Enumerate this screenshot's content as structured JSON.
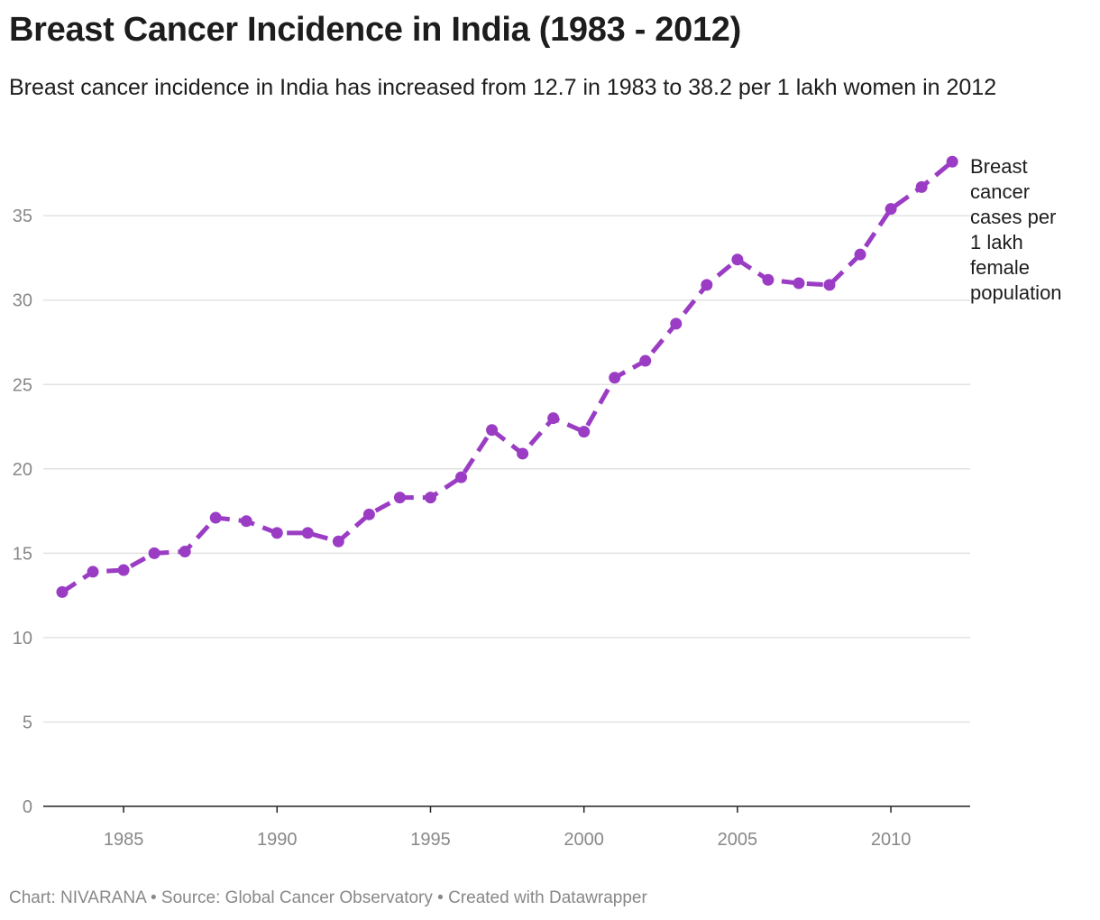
{
  "title": "Breast Cancer Incidence in India (1983 - 2012)",
  "subtitle": "Breast cancer incidence in India has increased from 12.7 in 1983 to 38.2 per 1 lakh women in 2012",
  "footer": "Chart: NIVARANA • Source: Global Cancer Observatory • Created with Datawrapper",
  "chart_data": {
    "type": "line",
    "title": "Breast Cancer Incidence in India (1983 - 2012)",
    "xlabel": "",
    "ylabel": "",
    "color": "#9b3dc4",
    "line_style": "dashed",
    "ylim": [
      0,
      38.5
    ],
    "xlim": [
      1983,
      2012
    ],
    "yticks": [
      0,
      5,
      10,
      15,
      20,
      25,
      30,
      35
    ],
    "xticks": [
      1985,
      1990,
      1995,
      2000,
      2005,
      2010
    ],
    "grid": true,
    "series": [
      {
        "name": "Breast cancer cases per 1 lakh female population",
        "label_lines": [
          "Breast",
          "cancer",
          "cases per",
          "1 lakh",
          "female",
          "population"
        ],
        "x": [
          1983,
          1984,
          1985,
          1986,
          1987,
          1988,
          1989,
          1990,
          1991,
          1992,
          1993,
          1994,
          1995,
          1996,
          1997,
          1998,
          1999,
          2000,
          2001,
          2002,
          2003,
          2004,
          2005,
          2006,
          2007,
          2008,
          2009,
          2010,
          2011,
          2012
        ],
        "values": [
          12.7,
          13.9,
          14.0,
          15.0,
          15.1,
          17.1,
          16.9,
          16.2,
          16.2,
          15.7,
          17.3,
          18.3,
          18.3,
          19.5,
          22.3,
          20.9,
          23.0,
          22.2,
          25.4,
          26.4,
          28.6,
          30.9,
          32.4,
          31.2,
          31.0,
          30.9,
          32.7,
          35.4,
          36.7,
          38.2
        ]
      }
    ]
  }
}
